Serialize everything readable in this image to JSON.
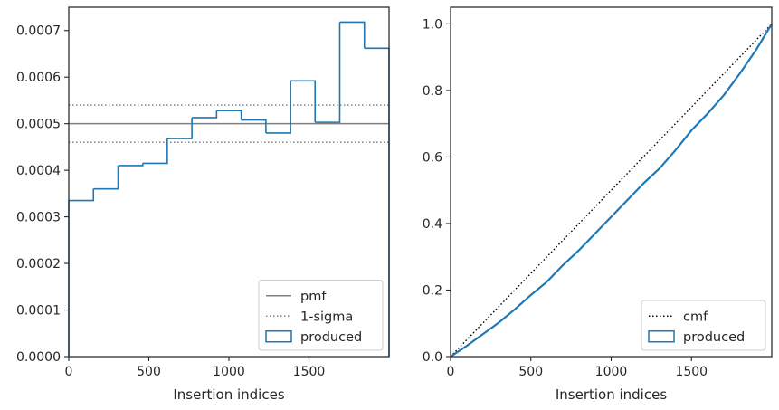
{
  "chart_data": [
    {
      "type": "step",
      "xlabel": "Insertion indices",
      "ylabel": "",
      "xlim": [
        0,
        2000
      ],
      "ylim": [
        0,
        0.00075
      ],
      "xticks": [
        0,
        500,
        1000,
        1500
      ],
      "xtick_labels": [
        "0",
        "500",
        "1000",
        "1500"
      ],
      "yticks": [
        0,
        0.0001,
        0.0002,
        0.0003,
        0.0004,
        0.0005,
        0.0006,
        0.0007
      ],
      "ytick_labels": [
        "0.0000",
        "0.0001",
        "0.0002",
        "0.0003",
        "0.0004",
        "0.0005",
        "0.0006",
        "0.0007"
      ],
      "pmf": 0.0005,
      "sigma_band": [
        0.00046,
        0.00054
      ],
      "bin_edges": [
        0,
        154,
        308,
        462,
        615,
        769,
        923,
        1077,
        1231,
        1385,
        1538,
        1692,
        1846,
        2000
      ],
      "produced": [
        0.000335,
        0.00036,
        0.00041,
        0.000415,
        0.000468,
        0.000513,
        0.000528,
        0.000508,
        0.00048,
        0.000592,
        0.000503,
        0.000718,
        0.000662
      ],
      "legend": {
        "position": "lower right",
        "entries": [
          {
            "label": "pmf",
            "style": "solid",
            "color": "#808080"
          },
          {
            "label": "1-sigma",
            "style": "dotted",
            "color": "#808080"
          },
          {
            "label": "produced",
            "style": "box",
            "color": "#1f77b4"
          }
        ]
      }
    },
    {
      "type": "line",
      "xlabel": "Insertion indices",
      "ylabel": "",
      "xlim": [
        0,
        2000
      ],
      "ylim": [
        0,
        1.05
      ],
      "xticks": [
        0,
        500,
        1000,
        1500
      ],
      "xtick_labels": [
        "0",
        "500",
        "1000",
        "1500"
      ],
      "yticks": [
        0,
        0.2,
        0.4,
        0.6,
        0.8,
        1.0
      ],
      "ytick_labels": [
        "0.0",
        "0.2",
        "0.4",
        "0.6",
        "0.8",
        "1.0"
      ],
      "cmf": {
        "x": [
          0,
          2000
        ],
        "y": [
          0,
          1.0
        ]
      },
      "produced": {
        "x": [
          0,
          100,
          200,
          300,
          400,
          500,
          600,
          700,
          800,
          900,
          1000,
          1100,
          1200,
          1300,
          1400,
          1500,
          1600,
          1700,
          1800,
          1900,
          2000
        ],
        "y": [
          0,
          0.032,
          0.067,
          0.102,
          0.142,
          0.185,
          0.225,
          0.275,
          0.32,
          0.37,
          0.42,
          0.47,
          0.52,
          0.565,
          0.62,
          0.68,
          0.73,
          0.785,
          0.85,
          0.92,
          1.0
        ]
      },
      "legend": {
        "position": "lower right",
        "entries": [
          {
            "label": "cmf",
            "style": "dotted",
            "color": "#000000"
          },
          {
            "label": "produced",
            "style": "box",
            "color": "#1f77b4"
          }
        ]
      }
    }
  ],
  "colors": {
    "produced": "#1f77b4",
    "reference": "#808080",
    "cmf": "#000000",
    "frame": "#262626",
    "text": "#262626"
  }
}
